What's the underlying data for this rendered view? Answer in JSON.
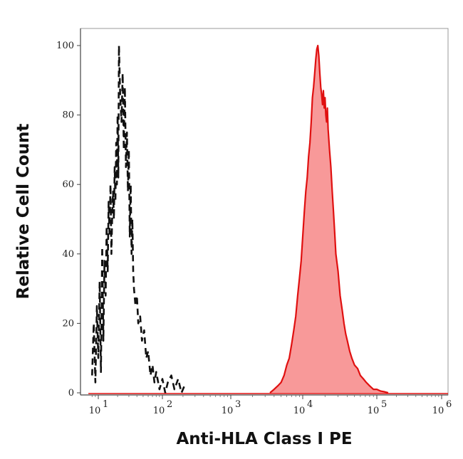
{
  "chart_data": {
    "type": "area",
    "title": "",
    "xlabel": "Anti-HLA Class I PE",
    "ylabel": "Relative Cell Count",
    "x_scale": "log",
    "xlim": [
      7,
      1200000
    ],
    "ylim": [
      0,
      100
    ],
    "x_ticks": [
      {
        "base": "10",
        "exp": "1"
      },
      {
        "base": "10",
        "exp": "2"
      },
      {
        "base": "10",
        "exp": "3"
      },
      {
        "base": "10",
        "exp": "4"
      },
      {
        "base": "10",
        "exp": "5"
      },
      {
        "base": "10",
        "exp": "6"
      }
    ],
    "y_ticks": [
      "0",
      "20",
      "40",
      "60",
      "80",
      "100"
    ],
    "grid": false,
    "series": [
      {
        "style": "dashed",
        "color": "#111111",
        "fill": "none",
        "x": [
          8,
          8.5,
          9,
          9.5,
          10,
          10.5,
          11,
          11.5,
          12,
          12.5,
          13,
          13.5,
          14,
          14.5,
          15,
          15.5,
          16,
          16.5,
          17,
          17.5,
          18,
          18.5,
          19,
          19.5,
          20,
          20.5,
          21,
          22,
          23,
          24,
          25,
          26,
          27,
          28,
          29,
          30,
          31,
          32,
          33,
          34,
          35,
          36,
          38,
          40,
          42,
          45,
          48,
          52,
          56,
          60,
          65,
          70,
          75,
          80,
          90,
          100,
          110,
          120,
          135,
          150,
          170,
          190,
          210
        ],
        "y": [
          5,
          20,
          3,
          25,
          10,
          32,
          6,
          42,
          15,
          38,
          28,
          48,
          35,
          55,
          45,
          60,
          40,
          52,
          58,
          50,
          65,
          55,
          72,
          60,
          80,
          62,
          100,
          85,
          78,
          92,
          70,
          88,
          65,
          75,
          58,
          70,
          45,
          60,
          40,
          50,
          35,
          30,
          25,
          28,
          20,
          22,
          15,
          18,
          10,
          12,
          5,
          8,
          3,
          6,
          1,
          4,
          0,
          3,
          5,
          1,
          4,
          0,
          2
        ]
      },
      {
        "style": "solid",
        "color": "#e01010",
        "fill": "#f89999",
        "x": [
          3500,
          4000,
          4500,
          5000,
          5500,
          6000,
          6500,
          7000,
          7500,
          8000,
          8500,
          9000,
          9500,
          10000,
          10500,
          11000,
          11500,
          12000,
          12500,
          13000,
          13500,
          14000,
          14500,
          15000,
          15500,
          16000,
          16500,
          17000,
          17500,
          18000,
          18500,
          19000,
          19500,
          20000,
          20500,
          21000,
          21500,
          22000,
          23000,
          24000,
          25000,
          26000,
          27000,
          28000,
          30000,
          32000,
          34000,
          36000,
          38000,
          40000,
          43000,
          46000,
          50000,
          55000,
          60000,
          66000,
          72000,
          80000,
          90000,
          100000,
          115000,
          130000,
          150000
        ],
        "y": [
          0,
          1,
          2,
          3,
          5,
          8,
          10,
          14,
          18,
          22,
          28,
          33,
          38,
          45,
          52,
          58,
          62,
          68,
          72,
          78,
          85,
          88,
          92,
          96,
          99,
          100,
          97,
          92,
          88,
          86,
          83,
          87,
          82,
          85,
          80,
          78,
          82,
          76,
          70,
          65,
          58,
          52,
          46,
          40,
          35,
          28,
          24,
          20,
          17,
          15,
          12,
          10,
          8,
          7,
          5,
          4,
          3,
          2,
          1,
          1,
          0.5,
          0.3,
          0
        ]
      }
    ]
  }
}
